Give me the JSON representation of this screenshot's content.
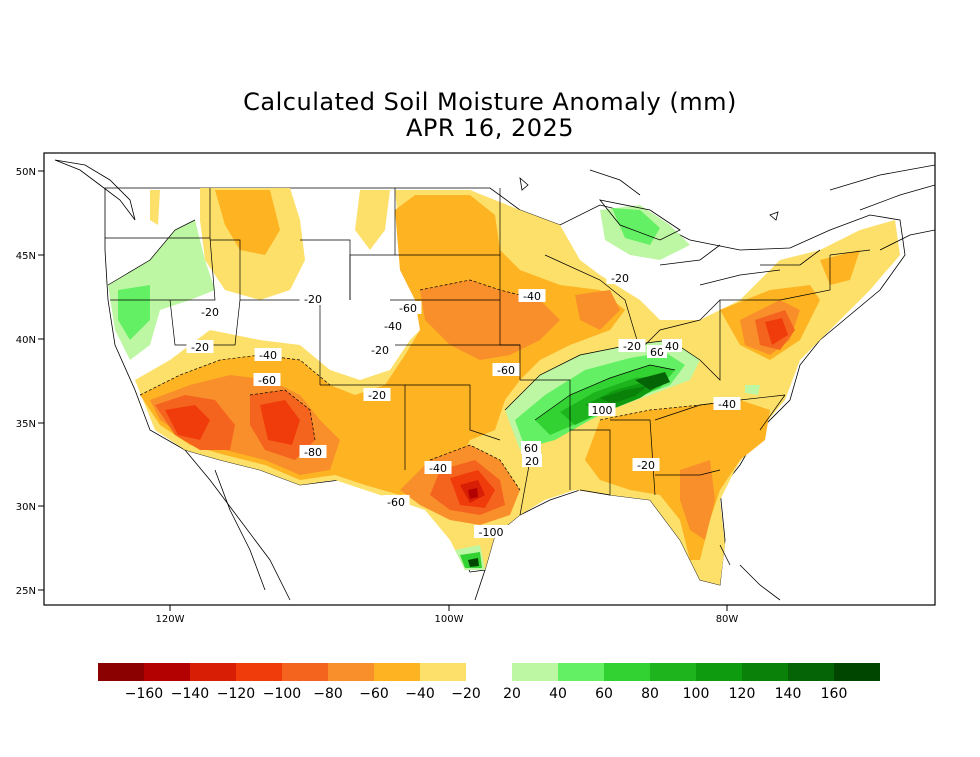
{
  "title": "Calculated Soil Moisture Anomaly (mm)",
  "date": "APR 16, 2025",
  "lat_labels": [
    "50N",
    "45N",
    "40N",
    "35N",
    "30N",
    "25N"
  ],
  "lon_labels": [
    "120W",
    "100W",
    "80W"
  ],
  "colorbar": {
    "negative_colors": [
      "#8b0000",
      "#b30000",
      "#d81e05",
      "#f03c0a",
      "#f5641e",
      "#f98f2a",
      "#fdb322",
      "#fde06a"
    ],
    "positive_colors": [
      "#bef7a3",
      "#64f064",
      "#32d232",
      "#1eb41e",
      "#0f9b0f",
      "#0a820a",
      "#056405",
      "#004600"
    ],
    "tick_labels": [
      "−160",
      "−140",
      "−120",
      "−100",
      "−80",
      "−60",
      "−40",
      "−20",
      "20",
      "40",
      "60",
      "80",
      "100",
      "120",
      "140",
      "160"
    ]
  },
  "contour_labels": [
    "-20",
    "-20",
    "-20",
    "-20",
    "-20",
    "-20",
    "-20",
    "-40",
    "-40",
    "-40",
    "-40",
    "-40",
    "-60",
    "-60",
    "-60",
    "-60",
    "-80",
    "-100",
    "60",
    "60",
    "40",
    "100",
    "20",
    "-20"
  ]
}
